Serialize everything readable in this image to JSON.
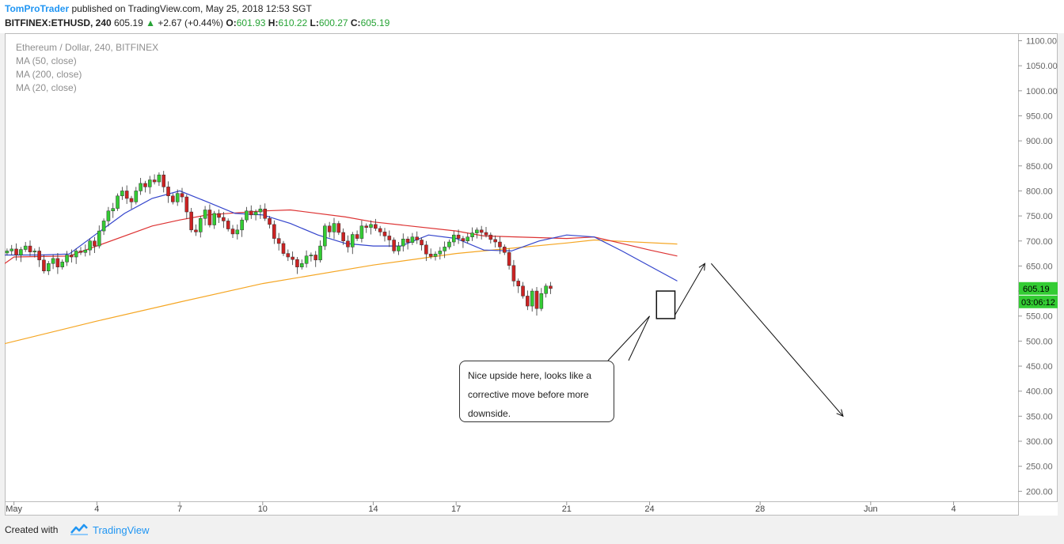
{
  "header": {
    "author": "TomProTrader",
    "published": "published on TradingView.com, May 25, 2018 12:53 SGT",
    "symbol": "BITFINEX:ETHUSD, 240",
    "last": "605.19",
    "change_arrow": "▲",
    "change": "+2.67 (+0.44%)",
    "o_label": "O:",
    "o_value": "601.93",
    "h_label": "H:",
    "h_value": "610.22",
    "l_label": "L:",
    "l_value": "600.27",
    "c_label": "C:",
    "c_value": "605.19"
  },
  "legend": {
    "title": "Ethereum / Dollar, 240, BITFINEX",
    "ma50": "MA (50, close)",
    "ma200": "MA (200, close)",
    "ma20": "MA (20, close)"
  },
  "annotation": {
    "line1": "Nice upside here, looks like a",
    "line2": "corrective move before more",
    "line3": "downside."
  },
  "footer": {
    "created_with": "Created with",
    "brand": "TradingView"
  },
  "colors": {
    "up": "#33cc33",
    "down": "#cc2222",
    "ma20": "#3344cc",
    "ma50": "#dd3333",
    "ma200": "#f5a623",
    "last_badge": "#33cc33",
    "brand": "#2196f3"
  },
  "chart_data": {
    "type": "candlestick",
    "price_axis": {
      "ticks": [
        200,
        250,
        300,
        350,
        400,
        450,
        500,
        550,
        600,
        650,
        700,
        750,
        800,
        850,
        900,
        950,
        1000,
        1050,
        1100
      ],
      "labels": [
        "200.00",
        "250.00",
        "300.00",
        "350.00",
        "400.00",
        "450.00",
        "500.00",
        "550.00",
        "600.00",
        "650.00",
        "700.00",
        "750.00",
        "800.00",
        "850.00",
        "900.00",
        "950.00",
        "1000.00",
        "1050.00",
        "1100.00"
      ],
      "range": [
        180,
        1115
      ]
    },
    "time_axis": {
      "labels": [
        "May",
        "4",
        "7",
        "10",
        "14",
        "17",
        "21",
        "24",
        "28",
        "Jun",
        "4"
      ],
      "dates": [
        "2018-05-01",
        "2018-05-04",
        "2018-05-07",
        "2018-05-10",
        "2018-05-14",
        "2018-05-17",
        "2018-05-21",
        "2018-05-24",
        "2018-05-28",
        "2018-06-01",
        "2018-06-04"
      ],
      "range": [
        "2018-04-30T16:00",
        "2018-06-06T08:00"
      ]
    },
    "last_price": {
      "value": 605.19,
      "label": "605.19",
      "countdown": "03:06:12"
    },
    "candles_close": [
      680,
      684,
      672,
      683,
      690,
      678,
      680,
      662,
      640,
      655,
      665,
      648,
      658,
      672,
      668,
      680,
      677,
      682,
      700,
      690,
      720,
      740,
      760,
      765,
      790,
      800,
      785,
      778,
      800,
      815,
      808,
      822,
      818,
      832,
      808,
      790,
      778,
      795,
      788,
      758,
      722,
      718,
      745,
      762,
      732,
      755,
      747,
      740,
      724,
      714,
      722,
      742,
      760,
      752,
      758,
      764,
      745,
      733,
      705,
      695,
      675,
      668,
      663,
      648,
      655,
      670,
      672,
      662,
      690,
      730,
      718,
      735,
      717,
      700,
      688,
      713,
      705,
      730,
      727,
      733,
      725,
      718,
      710,
      702,
      680,
      690,
      704,
      697,
      708,
      702,
      692,
      674,
      669,
      674,
      680,
      688,
      698,
      712,
      705,
      700,
      708,
      716,
      722,
      717,
      712,
      703,
      698,
      688,
      677,
      651,
      620,
      610,
      590,
      570,
      600,
      565,
      595,
      610,
      605
    ],
    "ma20": {
      "name": "MA (20, close)",
      "points": [
        [
          "2018-04-30T16:00",
          672
        ],
        [
          "2018-05-02",
          672
        ],
        [
          "2018-05-03",
          674
        ],
        [
          "2018-05-04",
          715
        ],
        [
          "2018-05-05",
          755
        ],
        [
          "2018-05-06",
          785
        ],
        [
          "2018-05-07",
          800
        ],
        [
          "2018-05-08",
          778
        ],
        [
          "2018-05-09",
          755
        ],
        [
          "2018-05-10",
          752
        ],
        [
          "2018-05-11",
          735
        ],
        [
          "2018-05-12",
          712
        ],
        [
          "2018-05-13",
          695
        ],
        [
          "2018-05-14",
          690
        ],
        [
          "2018-05-15",
          690
        ],
        [
          "2018-05-16",
          712
        ],
        [
          "2018-05-17",
          705
        ],
        [
          "2018-05-18",
          682
        ],
        [
          "2018-05-19",
          680
        ],
        [
          "2018-05-20",
          700
        ],
        [
          "2018-05-21",
          712
        ],
        [
          "2018-05-22",
          708
        ],
        [
          "2018-05-23",
          680
        ],
        [
          "2018-05-24",
          650
        ],
        [
          "2018-05-25",
          620
        ]
      ]
    },
    "ma50": {
      "name": "MA (50, close)",
      "points": [
        [
          "2018-04-30T16:00",
          655
        ],
        [
          "2018-05-01",
          668
        ],
        [
          "2018-05-03",
          670
        ],
        [
          "2018-05-04",
          690
        ],
        [
          "2018-05-06",
          730
        ],
        [
          "2018-05-07",
          742
        ],
        [
          "2018-05-08",
          752
        ],
        [
          "2018-05-10",
          760
        ],
        [
          "2018-05-11",
          762
        ],
        [
          "2018-05-13",
          748
        ],
        [
          "2018-05-14",
          738
        ],
        [
          "2018-05-17",
          720
        ],
        [
          "2018-05-18",
          710
        ],
        [
          "2018-05-21",
          705
        ],
        [
          "2018-05-22",
          708
        ],
        [
          "2018-05-23",
          695
        ],
        [
          "2018-05-24",
          682
        ],
        [
          "2018-05-25",
          670
        ]
      ]
    },
    "ma200": {
      "name": "MA (200, close)",
      "points": [
        [
          "2018-04-30T16:00",
          495
        ],
        [
          "2018-05-04",
          540
        ],
        [
          "2018-05-07",
          578
        ],
        [
          "2018-05-10",
          615
        ],
        [
          "2018-05-14",
          652
        ],
        [
          "2018-05-17",
          675
        ],
        [
          "2018-05-21",
          696
        ],
        [
          "2018-05-22",
          702
        ],
        [
          "2018-05-25",
          694
        ]
      ]
    },
    "drawings": {
      "box": [
        [
          "2018-05-24T06:00",
          600
        ],
        [
          "2018-05-24T22:00",
          545
        ]
      ],
      "projection": [
        [
          "2018-05-24T22:00",
          552
        ],
        [
          "2018-05-26",
          655
        ],
        [
          "2018-05-31",
          350
        ]
      ],
      "callout_anchor": [
        "2018-05-24",
        550
      ]
    }
  }
}
